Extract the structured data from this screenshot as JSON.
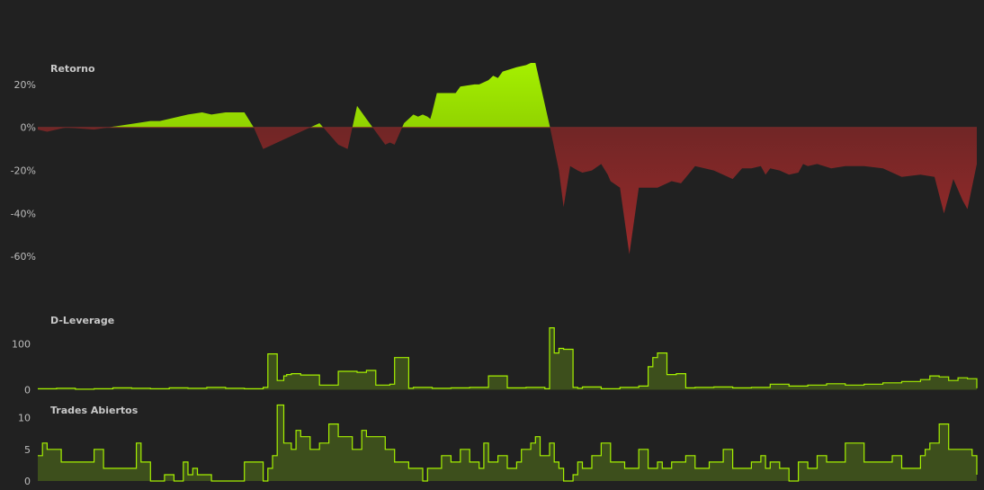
{
  "colors": {
    "background": "#212121",
    "positive_fill_top": "#a5f000",
    "positive_fill_bottom": "#6a9b00",
    "negative_fill_top": "#5c2424",
    "negative_fill_bottom": "#9a2a2a",
    "line": "#a5f000",
    "area_fill": "#3d4f1c",
    "text": "#bdbdbd"
  },
  "chart_data": [
    {
      "type": "area",
      "title": "Retorno",
      "y_unit": "%",
      "yticks": [
        "20%",
        "0%",
        "-20%",
        "-40%",
        "-60%"
      ],
      "ytick_values": [
        20,
        0,
        -20,
        -40,
        -60
      ],
      "ylim": [
        -62,
        30
      ],
      "xlim": [
        0,
        1000
      ],
      "grid": false,
      "x": [
        0,
        10,
        20,
        30,
        60,
        75,
        120,
        130,
        160,
        175,
        185,
        200,
        220,
        230,
        240,
        260,
        300,
        310,
        320,
        330,
        340,
        350,
        360,
        370,
        375,
        380,
        390,
        395,
        400,
        405,
        410,
        415,
        418,
        420,
        425,
        440,
        445,
        450,
        465,
        470,
        480,
        485,
        490,
        495,
        510,
        520,
        525,
        530,
        545,
        555,
        560,
        567,
        575,
        580,
        590,
        600,
        607,
        610,
        620,
        630,
        640,
        660,
        675,
        685,
        700,
        720,
        740,
        750,
        760,
        770,
        775,
        780,
        790,
        800,
        810,
        815,
        820,
        830,
        845,
        860,
        880,
        900,
        920,
        940,
        955,
        965,
        975,
        985,
        990,
        1000
      ],
      "values": [
        -1,
        -2,
        -1,
        0,
        -1,
        0,
        3,
        3,
        6,
        7,
        6,
        7,
        7,
        0,
        -10,
        -6,
        2,
        -3,
        -8,
        -10,
        10,
        4,
        -2,
        -8,
        -7,
        -8,
        2,
        4,
        6,
        5,
        6,
        5,
        4,
        7,
        16,
        16,
        16,
        19,
        20,
        20,
        22,
        24,
        23,
        26,
        28,
        29,
        30,
        30,
        1,
        -20,
        -37,
        -18,
        -20,
        -21,
        -20,
        -17,
        -22,
        -25,
        -28,
        -59,
        -28,
        -28,
        -25,
        -26,
        -18,
        -20,
        -24,
        -19,
        -19,
        -18,
        -22,
        -19,
        -20,
        -22,
        -21,
        -17,
        -18,
        -17,
        -19,
        -18,
        -18,
        -19,
        -23,
        -22,
        -23,
        -40,
        -24,
        -34,
        -38,
        -17
      ]
    },
    {
      "type": "line",
      "title": "D-Leverage",
      "yticks": [
        "100",
        "0"
      ],
      "ytick_values": [
        100,
        0
      ],
      "ylim": [
        -5,
        140
      ],
      "xlim": [
        0,
        1000
      ],
      "grid": false,
      "x": [
        0,
        20,
        40,
        60,
        80,
        100,
        120,
        140,
        160,
        180,
        200,
        220,
        240,
        245,
        255,
        262,
        265,
        270,
        280,
        300,
        320,
        340,
        350,
        360,
        375,
        380,
        395,
        400,
        420,
        440,
        460,
        480,
        500,
        520,
        540,
        545,
        550,
        555,
        560,
        570,
        575,
        580,
        600,
        620,
        640,
        650,
        655,
        660,
        670,
        680,
        690,
        700,
        720,
        740,
        760,
        780,
        800,
        820,
        840,
        860,
        880,
        900,
        920,
        940,
        950,
        960,
        970,
        980,
        990,
        1000
      ],
      "values": [
        2,
        3,
        1,
        2,
        4,
        3,
        2,
        4,
        3,
        5,
        3,
        2,
        5,
        78,
        20,
        30,
        33,
        35,
        32,
        10,
        40,
        38,
        42,
        10,
        12,
        70,
        3,
        5,
        3,
        4,
        5,
        30,
        4,
        5,
        2,
        135,
        80,
        90,
        88,
        5,
        3,
        6,
        2,
        5,
        8,
        50,
        70,
        80,
        33,
        35,
        4,
        5,
        6,
        4,
        5,
        12,
        8,
        10,
        13,
        10,
        12,
        15,
        18,
        22,
        30,
        28,
        20,
        26,
        24,
        3
      ]
    },
    {
      "type": "area",
      "title": "Trades Abiertos",
      "yticks": [
        "10",
        "5",
        "0"
      ],
      "ytick_values": [
        10,
        5,
        0
      ],
      "ylim": [
        0,
        12.5
      ],
      "xlim": [
        0,
        1000
      ],
      "grid": false,
      "x": [
        0,
        5,
        10,
        25,
        40,
        60,
        70,
        100,
        105,
        110,
        120,
        130,
        135,
        145,
        155,
        160,
        165,
        170,
        180,
        185,
        200,
        220,
        240,
        245,
        250,
        255,
        262,
        270,
        275,
        280,
        290,
        300,
        310,
        320,
        335,
        345,
        350,
        355,
        370,
        380,
        395,
        400,
        410,
        415,
        430,
        440,
        450,
        460,
        470,
        475,
        480,
        490,
        500,
        510,
        515,
        525,
        530,
        535,
        545,
        550,
        555,
        560,
        570,
        575,
        580,
        590,
        600,
        610,
        620,
        625,
        640,
        650,
        660,
        665,
        675,
        690,
        700,
        710,
        715,
        730,
        740,
        760,
        770,
        775,
        780,
        790,
        800,
        810,
        820,
        830,
        840,
        860,
        870,
        880,
        900,
        910,
        920,
        940,
        945,
        950,
        960,
        970,
        990,
        995,
        1000
      ],
      "values": [
        4,
        6,
        5,
        3,
        3,
        5,
        2,
        2,
        6,
        3,
        0,
        0,
        1,
        0,
        3,
        1,
        2,
        1,
        1,
        0,
        0,
        3,
        0,
        2,
        4,
        12,
        6,
        5,
        8,
        7,
        5,
        6,
        9,
        7,
        5,
        8,
        7,
        7,
        5,
        3,
        2,
        2,
        0,
        2,
        4,
        3,
        5,
        3,
        2,
        6,
        3,
        4,
        2,
        3,
        5,
        6,
        7,
        4,
        6,
        3,
        2,
        0,
        1,
        3,
        2,
        4,
        6,
        3,
        3,
        2,
        5,
        2,
        3,
        2,
        3,
        4,
        2,
        2,
        3,
        5,
        2,
        3,
        4,
        2,
        3,
        2,
        0,
        3,
        2,
        4,
        3,
        6,
        6,
        3,
        3,
        4,
        2,
        4,
        5,
        6,
        9,
        5,
        5,
        4,
        1
      ]
    }
  ]
}
